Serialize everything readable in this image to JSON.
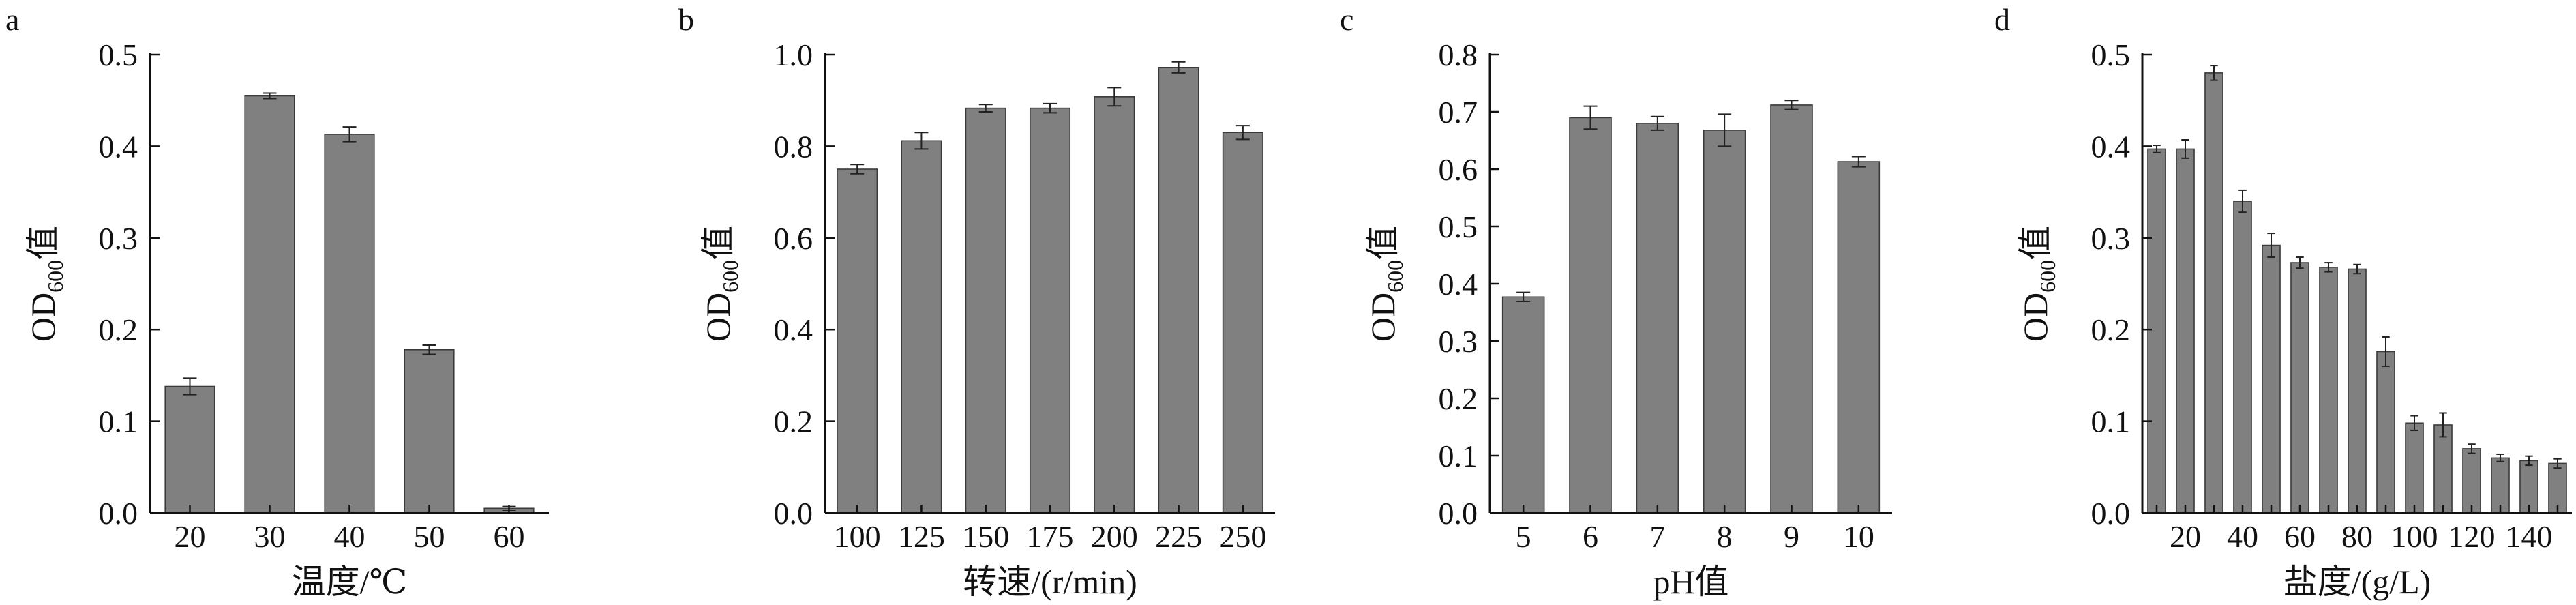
{
  "chart_data": [
    {
      "type": "bar",
      "panel_label": "a",
      "categories": [
        "20",
        "30",
        "40",
        "50",
        "60"
      ],
      "values": [
        0.138,
        0.455,
        0.413,
        0.178,
        0.005
      ],
      "errors": [
        0.009,
        0.003,
        0.008,
        0.005,
        0.002
      ],
      "xlabel": "温度/℃",
      "ylabel_main": "OD",
      "ylabel_sub": "600",
      "ylabel_suffix": "值",
      "ylim": [
        0,
        0.5
      ],
      "yticks": [
        "0.0",
        "0.1",
        "0.2",
        "0.3",
        "0.4",
        "0.5"
      ],
      "grid": false,
      "bar_color": "#808080"
    },
    {
      "type": "bar",
      "panel_label": "b",
      "categories": [
        "100",
        "125",
        "150",
        "175",
        "200",
        "225",
        "250"
      ],
      "values": [
        0.75,
        0.812,
        0.883,
        0.883,
        0.908,
        0.972,
        0.83
      ],
      "errors": [
        0.01,
        0.018,
        0.008,
        0.01,
        0.02,
        0.012,
        0.015
      ],
      "xlabel": "转速/(r/min)",
      "ylabel_main": "OD",
      "ylabel_sub": "600",
      "ylabel_suffix": "值",
      "ylim": [
        0,
        1.0
      ],
      "yticks": [
        "0.0",
        "0.2",
        "0.4",
        "0.6",
        "0.8",
        "1.0"
      ],
      "grid": false,
      "bar_color": "#808080"
    },
    {
      "type": "bar",
      "panel_label": "c",
      "categories": [
        "5",
        "6",
        "7",
        "8",
        "9",
        "10"
      ],
      "values": [
        0.377,
        0.69,
        0.68,
        0.668,
        0.712,
        0.613
      ],
      "errors": [
        0.008,
        0.02,
        0.012,
        0.028,
        0.008,
        0.009
      ],
      "xlabel": "pH值",
      "ylabel_main": "OD",
      "ylabel_sub": "600",
      "ylabel_suffix": "值",
      "ylim": [
        0,
        0.8
      ],
      "yticks": [
        "0.0",
        "0.1",
        "0.2",
        "0.3",
        "0.4",
        "0.5",
        "0.6",
        "0.7",
        "0.8"
      ],
      "grid": false,
      "bar_color": "#808080"
    },
    {
      "type": "bar",
      "panel_label": "d",
      "categories": [
        "10",
        "20",
        "30",
        "40",
        "50",
        "60",
        "70",
        "80",
        "90",
        "100",
        "110",
        "120",
        "130",
        "140",
        "150"
      ],
      "tick_labels": [
        "20",
        "40",
        "60",
        "80",
        "100",
        "120",
        "140"
      ],
      "values": [
        0.397,
        0.397,
        0.48,
        0.34,
        0.292,
        0.273,
        0.268,
        0.266,
        0.176,
        0.098,
        0.096,
        0.07,
        0.06,
        0.057,
        0.054
      ],
      "errors": [
        0.004,
        0.01,
        0.008,
        0.012,
        0.013,
        0.006,
        0.005,
        0.005,
        0.016,
        0.008,
        0.013,
        0.005,
        0.004,
        0.005,
        0.005
      ],
      "xlabel": "盐度/(g/L)",
      "ylabel_main": "OD",
      "ylabel_sub": "600",
      "ylabel_suffix": "值",
      "ylim": [
        0,
        0.5
      ],
      "yticks": [
        "0.0",
        "0.1",
        "0.2",
        "0.3",
        "0.4",
        "0.5"
      ],
      "grid": false,
      "bar_color": "#808080"
    }
  ]
}
